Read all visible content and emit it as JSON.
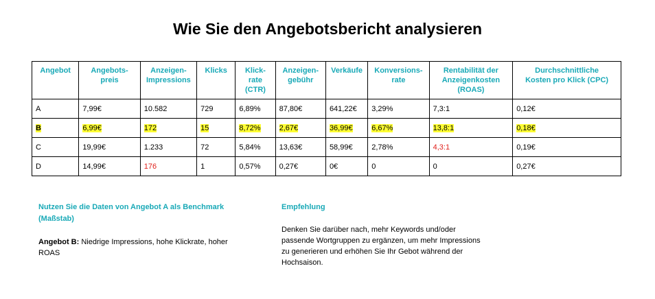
{
  "title": "Wie Sie den Angebotsbericht analysieren",
  "table": {
    "headers": [
      "Angebot",
      "Angebots-\npreis",
      "Anzeigen-\nImpressions",
      "Klicks",
      "Klick-\nrate\n(CTR)",
      "Anzeigen-\ngebühr",
      "Verkäufe",
      "Konversions-\nrate",
      "Rentabilität der\nAnzeigenkosten\n(ROAS)",
      "Durchschnittliche\nKosten pro Klick (CPC)"
    ],
    "rows": [
      {
        "cells": [
          "A",
          "7,99€",
          "10.582",
          "729",
          "6,89%",
          "87,80€",
          "641,22€",
          "3,29%",
          "7,3:1",
          "0,12€"
        ]
      },
      {
        "cells": [
          "B",
          "6,99€",
          "172",
          "15",
          "8,72%",
          "2,67€",
          "36,99€",
          "6,67%",
          "13,8:1",
          "0,18€"
        ]
      },
      {
        "cells": [
          "C",
          "19,99€",
          "1.233",
          "72",
          "5,84%",
          "13,63€",
          "58,99€",
          "2,78%",
          "4,3:1",
          "0,19€"
        ]
      },
      {
        "cells": [
          "D",
          "14,99€",
          "176",
          "1",
          "0,57%",
          "0,27€",
          "0€",
          "0",
          "0",
          "0,27€"
        ]
      }
    ]
  },
  "colors": {
    "heading": "#19a9b7",
    "highlight": "#ffff33",
    "alert": "#e0201b"
  },
  "left": {
    "heading": "Nutzen Sie die Daten von Angebot A als Benchmark (Maßstab)",
    "label": "Angebot B:",
    "text": " Niedrige Impressions, hohe Klickrate, hoher ROAS"
  },
  "right": {
    "heading": "Empfehlung",
    "text": "Denken Sie darüber nach, mehr Keywords und/oder passende Wortgruppen zu ergänzen, um mehr Impressions zu generieren und erhöhen Sie Ihr Gebot während der Hochsaison."
  }
}
